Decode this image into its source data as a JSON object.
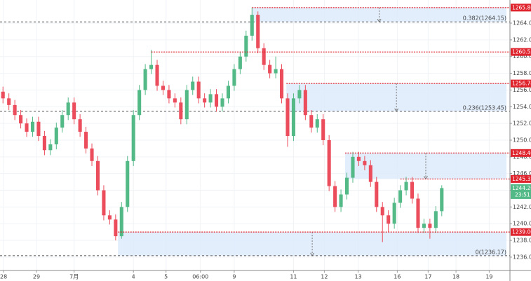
{
  "chart_data": {
    "type": "candlestick",
    "up_color": "#53b987",
    "down_color": "#eb4d5c",
    "level_color": "#e0242e",
    "fib_color": "#555555",
    "box_color": "#dbeafb",
    "grid": true,
    "open": [
      1255.8,
      1255.0,
      1254.2,
      1253.0,
      1252.0,
      1251.0,
      1252.2,
      1250.5,
      1248.8,
      1249.5,
      1251.5,
      1253.0,
      1254.5,
      1252.5,
      1251.0,
      1249.0,
      1247.5,
      1244.0,
      1241.0,
      1240.5,
      1238.5,
      1242.0,
      1247.5,
      1253.0,
      1256.0,
      1258.5,
      1259.0,
      1256.5,
      1256.0,
      1255.0,
      1254.5,
      1252.5,
      1256.0,
      1257.0,
      1255.0,
      1254.5,
      1255.5,
      1254.0,
      1255.0,
      1256.5,
      1258.5,
      1260.0,
      1262.5,
      1265.0,
      1261.0,
      1259.0,
      1258.0,
      1258.5,
      1255.0,
      1250.5,
      1255.0,
      1256.0,
      1253.0,
      1251.5,
      1252.5,
      1250.0,
      1244.5,
      1242.0,
      1243.5,
      1245.5,
      1248.0,
      1247.5,
      1247.0,
      1245.0,
      1242.0,
      1241.0,
      1240.0,
      1242.5,
      1244.0,
      1245.0,
      1243.0,
      1239.5,
      1240.0,
      1239.5,
      1241.5
    ],
    "high": [
      1256.4,
      1255.6,
      1254.8,
      1253.6,
      1252.6,
      1252.8,
      1252.8,
      1251.1,
      1250.1,
      1252.1,
      1253.6,
      1255.1,
      1255.1,
      1253.1,
      1251.6,
      1249.6,
      1248.1,
      1244.6,
      1241.6,
      1241.1,
      1242.6,
      1248.1,
      1253.6,
      1256.6,
      1259.1,
      1260.8,
      1259.6,
      1257.1,
      1256.6,
      1255.6,
      1255.1,
      1256.6,
      1257.6,
      1257.6,
      1255.6,
      1256.1,
      1256.1,
      1255.6,
      1257.1,
      1259.1,
      1260.6,
      1263.1,
      1265.86,
      1265.4,
      1261.6,
      1259.6,
      1260.0,
      1259.1,
      1255.6,
      1255.6,
      1256.6,
      1256.6,
      1253.6,
      1253.1,
      1253.1,
      1250.6,
      1245.1,
      1244.1,
      1246.1,
      1248.6,
      1248.6,
      1248.1,
      1247.6,
      1245.6,
      1242.6,
      1241.6,
      1243.1,
      1244.6,
      1245.6,
      1245.6,
      1243.6,
      1240.6,
      1240.6,
      1242.1,
      1244.6
    ],
    "low": [
      1254.4,
      1253.6,
      1252.4,
      1251.4,
      1250.4,
      1250.4,
      1249.9,
      1248.2,
      1248.2,
      1248.9,
      1250.9,
      1252.4,
      1251.9,
      1250.4,
      1248.4,
      1246.9,
      1243.4,
      1240.4,
      1239.9,
      1238.0,
      1238.2,
      1241.4,
      1246.9,
      1252.4,
      1255.4,
      1257.9,
      1255.9,
      1255.4,
      1254.4,
      1253.9,
      1251.9,
      1251.9,
      1255.4,
      1254.4,
      1253.9,
      1253.9,
      1253.4,
      1253.4,
      1254.4,
      1255.9,
      1257.9,
      1259.4,
      1261.9,
      1260.4,
      1258.4,
      1257.4,
      1257.4,
      1254.4,
      1249.2,
      1249.9,
      1254.4,
      1252.4,
      1250.9,
      1250.9,
      1249.4,
      1243.9,
      1241.4,
      1241.4,
      1242.9,
      1244.9,
      1246.9,
      1246.4,
      1244.4,
      1241.4,
      1237.8,
      1239.0,
      1239.4,
      1241.9,
      1243.4,
      1242.4,
      1238.9,
      1238.9,
      1238.2,
      1238.9,
      1240.9
    ],
    "close": [
      1255.0,
      1254.2,
      1253.0,
      1252.0,
      1251.0,
      1252.2,
      1250.5,
      1248.8,
      1249.5,
      1251.5,
      1253.0,
      1254.5,
      1252.5,
      1251.0,
      1249.0,
      1247.5,
      1244.0,
      1241.0,
      1240.5,
      1238.5,
      1242.0,
      1247.5,
      1253.0,
      1256.0,
      1258.5,
      1259.0,
      1256.5,
      1256.0,
      1255.0,
      1254.5,
      1252.5,
      1256.0,
      1257.0,
      1255.0,
      1254.5,
      1255.5,
      1254.0,
      1255.0,
      1256.5,
      1258.5,
      1260.0,
      1262.5,
      1265.0,
      1261.0,
      1259.0,
      1258.0,
      1258.5,
      1255.0,
      1250.5,
      1255.0,
      1256.0,
      1253.0,
      1251.5,
      1252.5,
      1250.0,
      1244.5,
      1242.0,
      1243.5,
      1245.5,
      1248.0,
      1247.5,
      1247.0,
      1245.0,
      1242.0,
      1241.0,
      1240.0,
      1242.5,
      1244.0,
      1245.0,
      1243.0,
      1239.5,
      1240.0,
      1239.5,
      1241.5,
      1244.26
    ],
    "countdown": "23:51",
    "xlim": [
      -0.5,
      85.5
    ],
    "ylim": [
      1234.4,
      1266.77
    ],
    "xticks": [
      {
        "value": 0.1,
        "label": "28"
      },
      {
        "value": 5.65,
        "label": "29"
      },
      {
        "value": 12.0,
        "label": "7月"
      },
      {
        "value": 22.0,
        "label": "4"
      },
      {
        "value": 27.5,
        "label": "5"
      },
      {
        "value": 33.3,
        "label": "06:00"
      },
      {
        "value": 39.0,
        "label": "9"
      },
      {
        "value": 49.0,
        "label": "11"
      },
      {
        "value": 54.2,
        "label": "12"
      },
      {
        "value": 59.9,
        "label": "13"
      },
      {
        "value": 66.5,
        "label": "16"
      },
      {
        "value": 71.7,
        "label": "17"
      },
      {
        "value": 76.4,
        "label": "18"
      },
      {
        "value": 82.0,
        "label": "19"
      }
    ],
    "yticks": [
      {
        "value": 1236,
        "label": "1236.00"
      },
      {
        "value": 1238,
        "label": "1238.00"
      },
      {
        "value": 1240,
        "label": "1240.00"
      },
      {
        "value": 1242,
        "label": "1242.00"
      },
      {
        "value": 1244,
        "label": "1244.00"
      },
      {
        "value": 1246,
        "label": "1246.00"
      },
      {
        "value": 1248,
        "label": "1248.00"
      },
      {
        "value": 1250,
        "label": "1250.00"
      },
      {
        "value": 1252,
        "label": "1252.00"
      },
      {
        "value": 1254,
        "label": "1254.00"
      },
      {
        "value": 1256,
        "label": "1256.00"
      },
      {
        "value": 1258,
        "label": "1258.00"
      },
      {
        "value": 1260,
        "label": "1260.00"
      },
      {
        "value": 1262,
        "label": "1262.00"
      },
      {
        "value": 1264,
        "label": "1264.00"
      }
    ],
    "boxes": [
      {
        "top": 1265.86,
        "bottom": 1264.15,
        "x": 42
      },
      {
        "top": 1256.78,
        "bottom": 1253.45,
        "x": 47.8
      },
      {
        "top": 1248.46,
        "bottom": 1245.35,
        "x": 57.7
      },
      {
        "top": 1239.0,
        "bottom": 1236.17,
        "x": 19.4
      }
    ],
    "levels": [
      {
        "value": 1265.86,
        "x": 42
      },
      {
        "value": 1260.55,
        "x": 25
      },
      {
        "value": 1256.78,
        "x": 47.8
      },
      {
        "value": 1248.46,
        "x": 57.7
      },
      {
        "value": 1245.35,
        "x": 67
      },
      {
        "value": 1239,
        "label": "1239.00",
        "x": 19.4
      }
    ],
    "fibs": [
      {
        "value": 1264.15,
        "label": "0.382(1264.15)"
      },
      {
        "value": 1253.45,
        "label": "0.236(1253.45)"
      },
      {
        "value": 1236.17,
        "label": "0(1236.17)"
      }
    ]
  }
}
